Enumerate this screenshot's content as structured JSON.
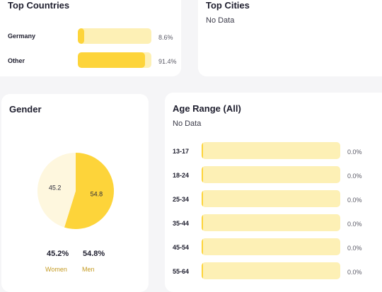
{
  "top_countries": {
    "title": "Top Countries",
    "items": [
      {
        "label": "Germany",
        "percent_text": "8.6%",
        "value": 8.6
      },
      {
        "label": "Other",
        "percent_text": "91.4%",
        "value": 91.4
      }
    ]
  },
  "top_cities": {
    "title": "Top Cities",
    "empty_text": "No Data"
  },
  "gender": {
    "title": "Gender",
    "chart_data": {
      "type": "pie",
      "slices": [
        {
          "label": "Women",
          "value": 45.2,
          "slice_label": "45.2",
          "percent_text": "45.2%",
          "color": "#fef7de"
        },
        {
          "label": "Men",
          "value": 54.8,
          "slice_label": "54.8",
          "percent_text": "54.8%",
          "color": "#fdd43a"
        }
      ]
    }
  },
  "age_range": {
    "title": "Age Range (All)",
    "empty_text": "No Data",
    "items": [
      {
        "label": "13-17",
        "percent_text": "0.0%",
        "value": 0.0
      },
      {
        "label": "18-24",
        "percent_text": "0.0%",
        "value": 0.0
      },
      {
        "label": "25-34",
        "percent_text": "0.0%",
        "value": 0.0
      },
      {
        "label": "35-44",
        "percent_text": "0.0%",
        "value": 0.0
      },
      {
        "label": "45-54",
        "percent_text": "0.0%",
        "value": 0.0
      },
      {
        "label": "55-64",
        "percent_text": "0.0%",
        "value": 0.0
      }
    ]
  },
  "colors": {
    "accent": "#fdd43a",
    "track": "#fdf0b5",
    "label_gold": "#c49a22",
    "background": "#f5f5f7"
  }
}
